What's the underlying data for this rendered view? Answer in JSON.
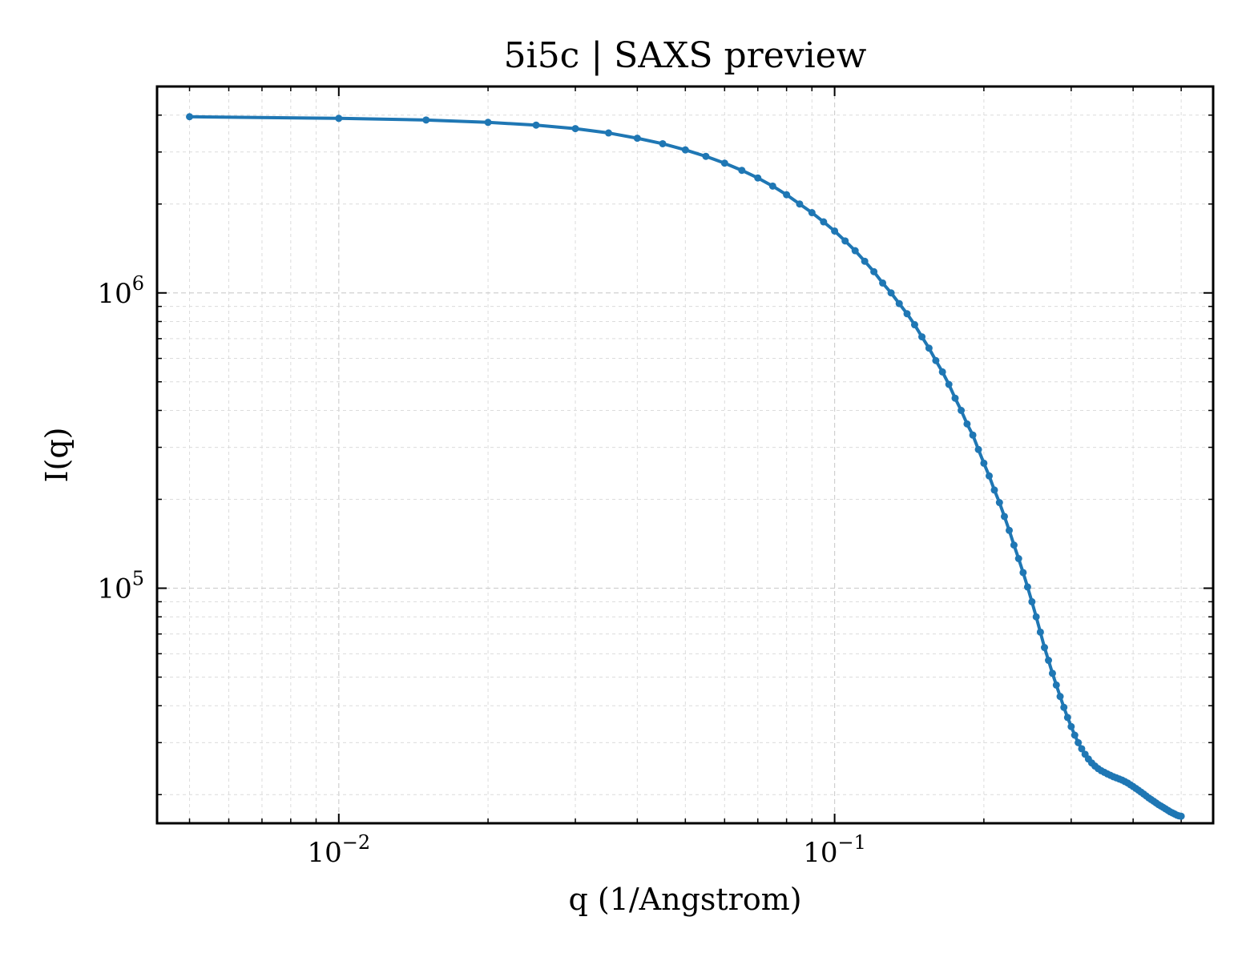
{
  "chart_data": {
    "type": "line",
    "title": "5i5c | SAXS preview",
    "xlabel": "q (1/Angstrom)",
    "ylabel": "I(q)",
    "xscale": "log",
    "yscale": "log",
    "xlim": [
      0.0043,
      0.58
    ],
    "ylim": [
      16000,
      5000000
    ],
    "grid": true,
    "line_color": "#1f77b4",
    "x_ticks": [
      {
        "value": 0.01,
        "base": "10",
        "exp": "−2"
      },
      {
        "value": 0.1,
        "base": "10",
        "exp": "−1"
      }
    ],
    "y_ticks": [
      {
        "value": 100000,
        "base": "10",
        "exp": "5"
      },
      {
        "value": 1000000,
        "base": "10",
        "exp": "6"
      }
    ],
    "series": [
      {
        "x": [
          0.005,
          0.01,
          0.015,
          0.02,
          0.025,
          0.03,
          0.035,
          0.04,
          0.045,
          0.05,
          0.055,
          0.06,
          0.065,
          0.07,
          0.075,
          0.08,
          0.085,
          0.09,
          0.095,
          0.1,
          0.105,
          0.11,
          0.115,
          0.12,
          0.125,
          0.13,
          0.135,
          0.14,
          0.145,
          0.15,
          0.155,
          0.16,
          0.165,
          0.17,
          0.175,
          0.18,
          0.185,
          0.19,
          0.195,
          0.2,
          0.205,
          0.21,
          0.215,
          0.22,
          0.225,
          0.23,
          0.235,
          0.24,
          0.245,
          0.25,
          0.255,
          0.26,
          0.265,
          0.27,
          0.275,
          0.28,
          0.285,
          0.29,
          0.295,
          0.3,
          0.305,
          0.31,
          0.315,
          0.32,
          0.325,
          0.33,
          0.335,
          0.34,
          0.345,
          0.35,
          0.355,
          0.36,
          0.365,
          0.37,
          0.375,
          0.38,
          0.385,
          0.39,
          0.395,
          0.4,
          0.405,
          0.41,
          0.415,
          0.42,
          0.425,
          0.43,
          0.435,
          0.44,
          0.445,
          0.45,
          0.455,
          0.46,
          0.465,
          0.47,
          0.475,
          0.48,
          0.485,
          0.49,
          0.495,
          0.5
        ],
        "y": [
          3950000,
          3900000,
          3850000,
          3780000,
          3700000,
          3600000,
          3480000,
          3340000,
          3200000,
          3050000,
          2900000,
          2750000,
          2600000,
          2450000,
          2300000,
          2150000,
          2000000,
          1870000,
          1740000,
          1620000,
          1500000,
          1390000,
          1280000,
          1180000,
          1080000,
          1000000,
          920000,
          850000,
          780000,
          710000,
          650000,
          590000,
          540000,
          490000,
          440000,
          400000,
          360000,
          330000,
          295000,
          265000,
          240000,
          215000,
          195000,
          175000,
          157000,
          140000,
          126000,
          113000,
          101000,
          90000,
          80000,
          71000,
          63000,
          57000,
          51500,
          47000,
          43000,
          39500,
          36500,
          34000,
          31800,
          30000,
          28600,
          27400,
          26400,
          25600,
          25000,
          24500,
          24100,
          23800,
          23500,
          23250,
          23000,
          22800,
          22600,
          22400,
          22150,
          21900,
          21600,
          21300,
          21000,
          20700,
          20400,
          20100,
          19800,
          19500,
          19250,
          19000,
          18750,
          18500,
          18300,
          18100,
          17900,
          17700,
          17500,
          17350,
          17200,
          17050,
          16950,
          16900
        ]
      }
    ]
  }
}
